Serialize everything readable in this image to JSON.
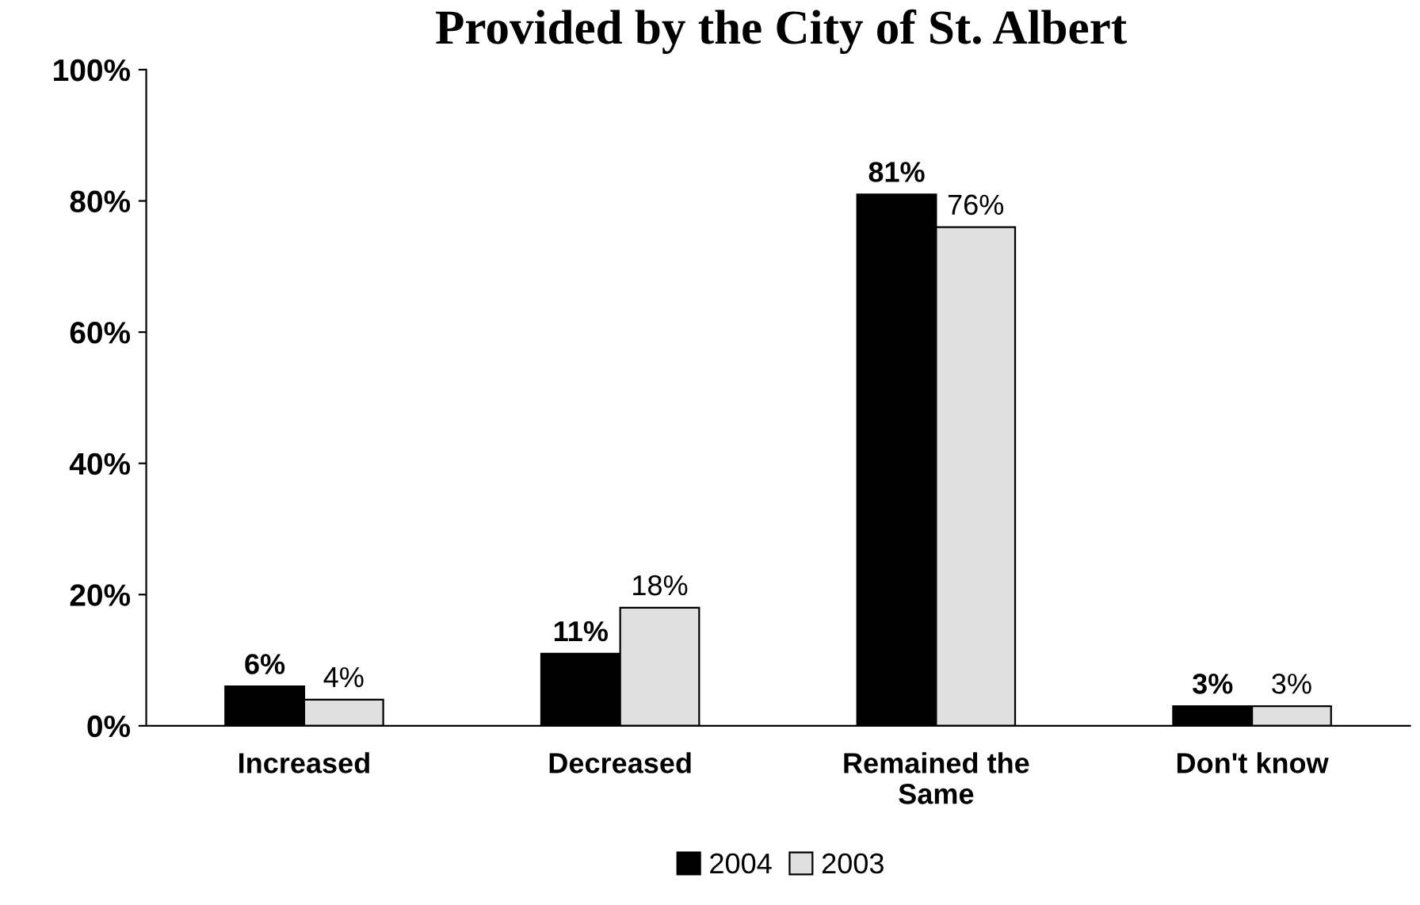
{
  "chart_data": {
    "type": "bar",
    "title": "Provided by the City of St. Albert",
    "categories": [
      "Increased",
      "Decreased",
      "Remained the\nSame",
      "Don't know"
    ],
    "series": [
      {
        "name": "2004",
        "color": "#000000",
        "values": [
          6,
          11,
          81,
          3
        ],
        "value_labels": [
          "6%",
          "11%",
          "81%",
          "3%"
        ]
      },
      {
        "name": "2003",
        "color": "#e0e0e0",
        "values": [
          4,
          18,
          76,
          3
        ],
        "value_labels": [
          "4%",
          "18%",
          "76%",
          "3%"
        ]
      }
    ],
    "ylim": [
      0,
      100
    ],
    "yticks": [
      {
        "value": 0,
        "label": "0%"
      },
      {
        "value": 20,
        "label": "20%"
      },
      {
        "value": 40,
        "label": "40%"
      },
      {
        "value": 60,
        "label": "60%"
      },
      {
        "value": 80,
        "label": "80%"
      },
      {
        "value": 100,
        "label": "100%"
      }
    ],
    "grid": false,
    "legend": "bottom"
  }
}
